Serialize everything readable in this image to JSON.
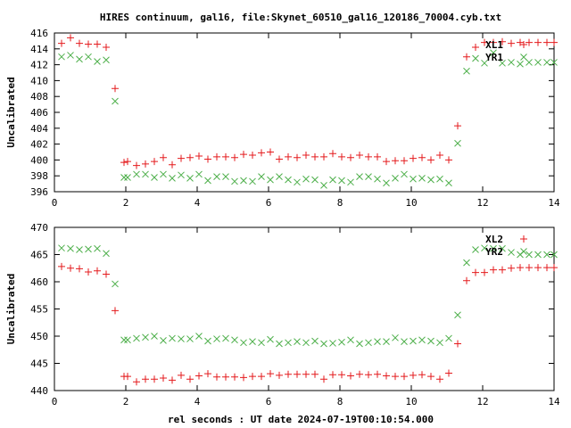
{
  "page_title": "HIRES continuum, gal16, file:Skynet_60510_gal16_120186_70004.cyb.txt",
  "shared_xlabel": "rel seconds : UT date 2024-07-19T00:10:54.000",
  "chart_data": [
    {
      "type": "scatter",
      "title": "HIRES continuum, gal16, file:Skynet_60510_gal16_120186_70004.cyb.txt",
      "ylabel": "Uncalibrated",
      "xlim": [
        0,
        14
      ],
      "ylim": [
        396,
        416
      ],
      "xticks": [
        0,
        2,
        4,
        6,
        8,
        10,
        12,
        14
      ],
      "yticks": [
        396,
        398,
        400,
        402,
        404,
        406,
        408,
        410,
        412,
        414,
        416
      ],
      "legend_position": "top-right",
      "series": [
        {
          "name": "XL1",
          "marker": "+",
          "color": "#e41a1c",
          "x": [
            0.2,
            0.45,
            0.7,
            0.95,
            1.2,
            1.45,
            1.7,
            1.95,
            2.05,
            2.3,
            2.55,
            2.8,
            3.05,
            3.3,
            3.55,
            3.8,
            4.05,
            4.3,
            4.55,
            4.8,
            5.05,
            5.3,
            5.55,
            5.8,
            6.05,
            6.3,
            6.55,
            6.8,
            7.05,
            7.3,
            7.55,
            7.8,
            8.05,
            8.3,
            8.55,
            8.8,
            9.05,
            9.3,
            9.55,
            9.8,
            10.05,
            10.3,
            10.55,
            10.8,
            11.05,
            11.3,
            11.55,
            11.8,
            12.05,
            12.3,
            12.55,
            12.8,
            13.05,
            13.3,
            13.55,
            13.8,
            14.0
          ],
          "y": [
            414.7,
            415.4,
            414.7,
            414.6,
            414.6,
            414.2,
            409.0,
            399.7,
            399.8,
            399.3,
            399.5,
            399.8,
            400.3,
            399.4,
            400.2,
            400.3,
            400.5,
            400.1,
            400.4,
            400.4,
            400.3,
            400.7,
            400.6,
            400.9,
            401.0,
            400.1,
            400.4,
            400.3,
            400.6,
            400.4,
            400.4,
            400.8,
            400.4,
            400.3,
            400.6,
            400.4,
            400.4,
            399.8,
            399.9,
            399.9,
            400.2,
            400.3,
            400.0,
            400.6,
            400.0,
            404.3,
            413.0,
            414.2,
            414.8,
            414.8,
            414.9,
            414.7,
            414.8,
            414.8,
            414.8,
            414.8,
            414.8
          ]
        },
        {
          "name": "YR1",
          "marker": "x",
          "color": "#4daf4a",
          "x": [
            0.2,
            0.45,
            0.7,
            0.95,
            1.2,
            1.45,
            1.7,
            1.95,
            2.05,
            2.3,
            2.55,
            2.8,
            3.05,
            3.3,
            3.55,
            3.8,
            4.05,
            4.3,
            4.55,
            4.8,
            5.05,
            5.3,
            5.55,
            5.8,
            6.05,
            6.3,
            6.55,
            6.8,
            7.05,
            7.3,
            7.55,
            7.8,
            8.05,
            8.3,
            8.55,
            8.8,
            9.05,
            9.3,
            9.55,
            9.8,
            10.05,
            10.3,
            10.55,
            10.8,
            11.05,
            11.3,
            11.55,
            11.8,
            12.05,
            12.3,
            12.55,
            12.8,
            13.05,
            13.3,
            13.55,
            13.8,
            14.0
          ],
          "y": [
            413.0,
            413.2,
            412.7,
            413.0,
            412.4,
            412.6,
            407.4,
            397.8,
            397.8,
            398.2,
            398.2,
            397.8,
            398.2,
            397.7,
            398.1,
            397.7,
            398.2,
            397.4,
            397.9,
            397.9,
            397.3,
            397.4,
            397.3,
            397.9,
            397.5,
            397.9,
            397.5,
            397.2,
            397.6,
            397.5,
            396.8,
            397.5,
            397.4,
            397.2,
            397.9,
            397.9,
            397.6,
            397.1,
            397.7,
            398.2,
            397.6,
            397.7,
            397.5,
            397.6,
            397.1,
            402.1,
            411.2,
            412.8,
            412.2,
            413.5,
            412.2,
            412.3,
            412.1,
            412.3,
            412.3,
            412.3,
            412.3
          ]
        }
      ]
    },
    {
      "type": "scatter",
      "title": "",
      "xlabel": "rel seconds : UT date 2024-07-19T00:10:54.000",
      "ylabel": "Uncalibrated",
      "xlim": [
        0,
        14
      ],
      "ylim": [
        440,
        470
      ],
      "xticks": [
        0,
        2,
        4,
        6,
        8,
        10,
        12,
        14
      ],
      "yticks": [
        440,
        445,
        450,
        455,
        460,
        465,
        470
      ],
      "legend_position": "top-right",
      "series": [
        {
          "name": "XL2",
          "marker": "+",
          "color": "#e41a1c",
          "x": [
            0.2,
            0.45,
            0.7,
            0.95,
            1.2,
            1.45,
            1.7,
            1.95,
            2.05,
            2.3,
            2.55,
            2.8,
            3.05,
            3.3,
            3.55,
            3.8,
            4.05,
            4.3,
            4.55,
            4.8,
            5.05,
            5.3,
            5.55,
            5.8,
            6.05,
            6.3,
            6.55,
            6.8,
            7.05,
            7.3,
            7.55,
            7.8,
            8.05,
            8.3,
            8.55,
            8.8,
            9.05,
            9.3,
            9.55,
            9.8,
            10.05,
            10.3,
            10.55,
            10.8,
            11.05,
            11.3,
            11.55,
            11.8,
            12.05,
            12.3,
            12.55,
            12.8,
            13.05,
            13.3,
            13.55,
            13.8,
            14.0
          ],
          "y": [
            462.8,
            462.5,
            462.4,
            461.8,
            462.0,
            461.4,
            454.7,
            442.6,
            442.6,
            441.6,
            442.1,
            442.1,
            442.3,
            441.9,
            442.8,
            442.1,
            442.7,
            443.1,
            442.5,
            442.5,
            442.5,
            442.4,
            442.6,
            442.6,
            443.1,
            442.8,
            443.0,
            443.0,
            443.0,
            443.0,
            442.1,
            442.9,
            442.9,
            442.7,
            443.0,
            442.9,
            443.0,
            442.7,
            442.6,
            442.6,
            442.8,
            442.9,
            442.6,
            442.1,
            443.2,
            448.6,
            460.2,
            461.7,
            461.7,
            462.2,
            462.2,
            462.5,
            462.6,
            462.6,
            462.6,
            462.6,
            462.6
          ]
        },
        {
          "name": "YR2",
          "marker": "x",
          "color": "#4daf4a",
          "x": [
            0.2,
            0.45,
            0.7,
            0.95,
            1.2,
            1.45,
            1.7,
            1.95,
            2.05,
            2.3,
            2.55,
            2.8,
            3.05,
            3.3,
            3.55,
            3.8,
            4.05,
            4.3,
            4.55,
            4.8,
            5.05,
            5.3,
            5.55,
            5.8,
            6.05,
            6.3,
            6.55,
            6.8,
            7.05,
            7.3,
            7.55,
            7.8,
            8.05,
            8.3,
            8.55,
            8.8,
            9.05,
            9.3,
            9.55,
            9.8,
            10.05,
            10.3,
            10.55,
            10.8,
            11.05,
            11.3,
            11.55,
            11.8,
            12.05,
            12.3,
            12.55,
            12.8,
            13.05,
            13.3,
            13.55,
            13.8,
            14.0
          ],
          "y": [
            466.2,
            466.1,
            465.9,
            466.0,
            466.1,
            465.2,
            459.6,
            449.3,
            449.3,
            449.6,
            449.8,
            450.0,
            449.2,
            449.6,
            449.5,
            449.5,
            450.0,
            449.1,
            449.5,
            449.6,
            449.3,
            448.8,
            449.0,
            448.8,
            449.4,
            448.6,
            448.8,
            449.0,
            448.8,
            449.1,
            448.6,
            448.7,
            448.9,
            449.3,
            448.6,
            448.8,
            449.0,
            449.0,
            449.7,
            449.0,
            449.1,
            449.3,
            449.1,
            448.8,
            449.6,
            453.9,
            463.5,
            465.9,
            466.2,
            466.1,
            466.1,
            465.4,
            465.0,
            465.0,
            465.0,
            465.0,
            465.0
          ]
        }
      ]
    }
  ]
}
